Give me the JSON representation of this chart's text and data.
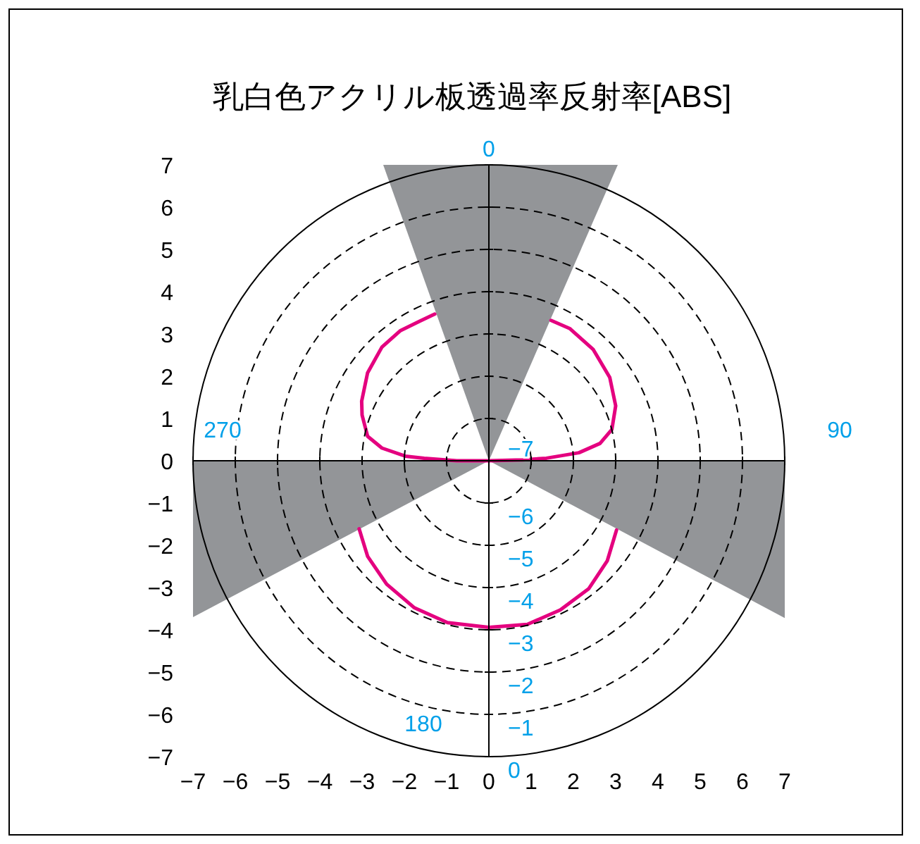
{
  "chart_data": {
    "type": "line",
    "title": "乳白色アクリル板透過率反射率[ABS]",
    "xlim": [
      -7,
      7
    ],
    "ylim": [
      -7,
      7
    ],
    "xticks": [
      {
        "value": -7,
        "label": "−7"
      },
      {
        "value": -6,
        "label": "−6"
      },
      {
        "value": -5,
        "label": "−5"
      },
      {
        "value": -4,
        "label": "−4"
      },
      {
        "value": -3,
        "label": "−3"
      },
      {
        "value": -2,
        "label": "−2"
      },
      {
        "value": -1,
        "label": "−1"
      },
      0,
      1,
      2,
      3,
      4,
      5,
      6,
      7
    ],
    "yticks": [
      {
        "value": -7,
        "label": "−7"
      },
      {
        "value": -6,
        "label": "−6"
      },
      {
        "value": -5,
        "label": "−5"
      },
      {
        "value": -4,
        "label": "−4"
      },
      {
        "value": -3,
        "label": "−3"
      },
      {
        "value": -2,
        "label": "−2"
      },
      {
        "value": -1,
        "label": "−1"
      },
      0,
      1,
      2,
      3,
      4,
      5,
      6,
      7
    ],
    "grid": true,
    "series": [
      {
        "type": "area",
        "color": "#939598",
        "x": [
          0,
          -2.5,
          3.05
        ],
        "values": [
          0,
          7,
          7
        ]
      },
      {
        "type": "area",
        "color": "#939598",
        "x": [
          0,
          -7,
          -7
        ],
        "values": [
          0,
          0,
          -3.7
        ]
      },
      {
        "type": "area",
        "color": "#939598",
        "x": [
          0,
          7,
          7
        ],
        "values": [
          0,
          0,
          -3.72
        ]
      },
      {
        "type": "line",
        "color": "#e4007f",
        "x": [
          0,
          -0.76,
          -1.53,
          -1.98,
          -2.53,
          -2.87,
          -3.0,
          -3.01,
          -2.87,
          -2.53,
          -2.09,
          -1.64,
          -1.28,
          null,
          1.47,
          1.91,
          2.47,
          2.86,
          3.0,
          2.91,
          2.63,
          2.13,
          1.36,
          0.8,
          0
        ],
        "values": [
          0,
          0,
          0.06,
          0.11,
          0.3,
          0.58,
          1.08,
          1.41,
          2.08,
          2.69,
          3.08,
          3.3,
          3.47,
          null,
          3.32,
          3.13,
          2.63,
          1.97,
          1.3,
          0.74,
          0.41,
          0.19,
          0.06,
          0.02,
          0
        ]
      },
      {
        "type": "line",
        "color": "#e4007f",
        "x": [
          -3.07,
          -2.87,
          -2.42,
          -1.76,
          -0.98,
          0,
          0.91,
          1.69,
          2.36,
          2.8,
          3.02
        ],
        "values": [
          -1.61,
          -2.26,
          -2.92,
          -3.48,
          -3.83,
          -3.94,
          -3.87,
          -3.53,
          -3.03,
          -2.37,
          -1.64
        ]
      }
    ],
    "annotations": [
      "0",
      "90",
      "180",
      "270",
      "−7",
      "−6",
      "−5",
      "−4",
      "−3",
      "−2",
      "−1",
      "0"
    ]
  }
}
